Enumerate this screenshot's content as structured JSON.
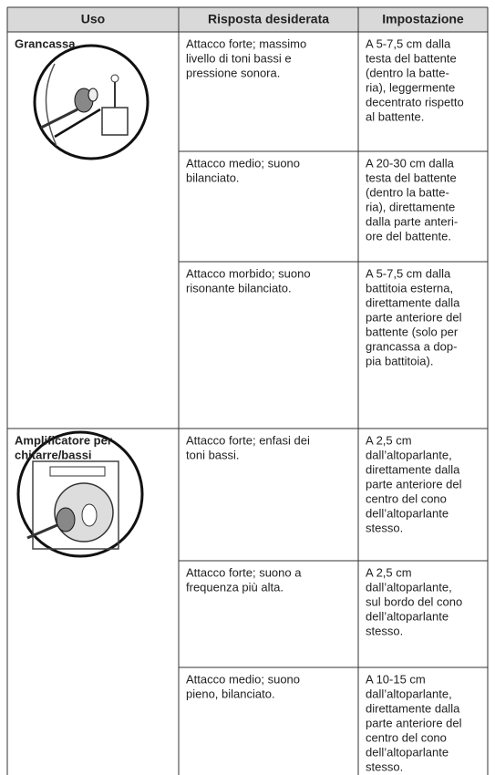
{
  "table": {
    "header": [
      "Uso",
      "Risposta desiderata",
      "Impostazione"
    ],
    "groups": [
      {
        "label": [
          "Grancassa"
        ],
        "rows": [
          {
            "response": [
              "Attacco forte; massimo",
              "livello di toni bassi e",
              "pressione sonora."
            ],
            "setting": [
              "A 5-7,5 cm dalla",
              "testa del battente",
              "(dentro la batte-",
              "ria), leggermente",
              "decentrato rispetto",
              "al battente."
            ]
          },
          {
            "response": [
              "Attacco medio; suono",
              "bilanciato."
            ],
            "setting": [
              "A 20-30 cm dalla",
              "testa del battente",
              "(dentro la batte-",
              "ria), direttamente",
              "dalla parte anteri-",
              "ore del battente."
            ]
          },
          {
            "response": [
              "Attacco morbido; suono",
              "risonante bilanciato."
            ],
            "setting": [
              "A 5-7,5 cm dalla",
              "battitoia esterna,",
              "direttamente dalla",
              "parte anteriore del",
              "battente (solo per",
              "grancassa a dop-",
              "pia battitoia)."
            ]
          }
        ]
      },
      {
        "label": [
          "Amplificatore per",
          "chitarre/bassi"
        ],
        "rows": [
          {
            "response": [
              "Attacco forte; enfasi dei",
              "toni bassi."
            ],
            "setting": [
              "A 2,5 cm",
              "dall’altoparlante,",
              "direttamente dalla",
              "parte anteriore del",
              "centro del cono",
              "dell’altoparlante",
              "stesso."
            ]
          },
          {
            "response": [
              "Attacco forte; suono a",
              "frequenza più alta."
            ],
            "setting": [
              "A 2,5 cm",
              "dall’altoparlante,",
              "sul bordo del cono",
              "dell’altoparlante",
              "stesso."
            ]
          },
          {
            "response": [
              "Attacco medio; suono",
              "pieno, bilanciato."
            ],
            "setting": [
              "A 10-15 cm",
              "dall’altoparlante,",
              "direttamente dalla",
              "parte anteriore del",
              "centro del cono",
              "dell’altoparlante",
              "stesso."
            ]
          }
        ]
      }
    ]
  }
}
